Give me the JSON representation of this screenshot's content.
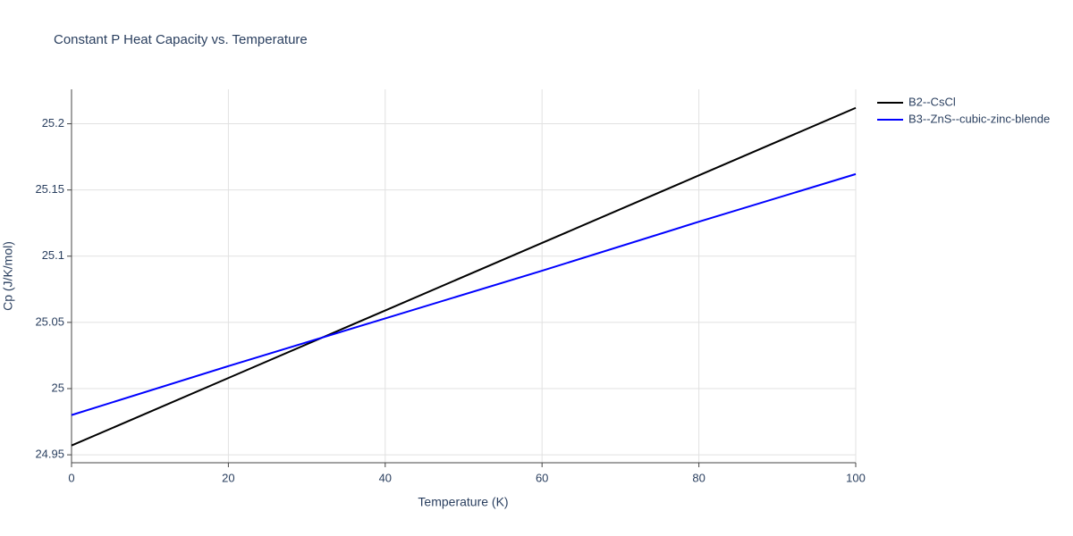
{
  "chart_data": {
    "type": "line",
    "title": "Constant P Heat Capacity vs. Temperature",
    "x_label": "Temperature (K)",
    "y_label": "Cp (J/K/mol)",
    "x": [
      0,
      20,
      40,
      60,
      80,
      100
    ],
    "series": [
      {
        "name": "B2--CsCl",
        "color": "#000000",
        "values": [
          24.957,
          25.008,
          25.059,
          25.11,
          25.161,
          25.212
        ]
      },
      {
        "name": "B3--ZnS--cubic-zinc-blende",
        "color": "#0000ff",
        "values": [
          24.98,
          25.017,
          25.053,
          25.089,
          25.126,
          25.162
        ]
      }
    ],
    "xlim": [
      0,
      100
    ],
    "xticks": [
      0,
      20,
      40,
      60,
      80,
      100
    ],
    "ylim": [
      24.944,
      25.226
    ],
    "yticks": [
      24.95,
      25,
      25.05,
      25.1,
      25.15,
      25.2
    ],
    "grid": true,
    "legend": "right"
  }
}
